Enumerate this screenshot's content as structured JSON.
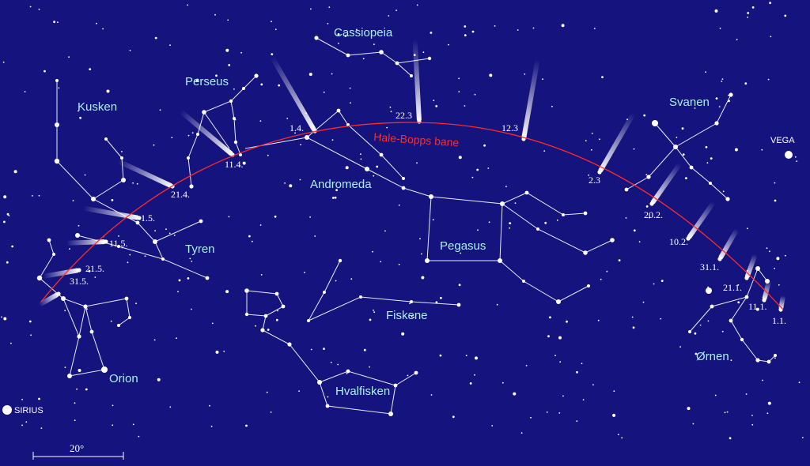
{
  "colors": {
    "background": "#15137e",
    "constellation_label": "#a8f2f2",
    "comet_path": "#ff2a2a",
    "stars": "#ffffff"
  },
  "comet_path_label": "Hale-Bopps bane",
  "constellations": {
    "cassiopeia": "Cassiopeia",
    "perseus": "Perseus",
    "kusken": "Kusken",
    "svanen": "Svanen",
    "andromeda": "Andromeda",
    "tyren": "Tyren",
    "pegasus": "Pegasus",
    "fiskene": "Fiskene",
    "orion": "Orion",
    "hvalfisken": "Hvalfisken",
    "ornen": "Ørnen"
  },
  "named_stars": {
    "vega": "VEGA",
    "sirius": "SIRIUS"
  },
  "dates": [
    "1.1.",
    "11.1.",
    "21.1.",
    "31.1.",
    "10.2.",
    "20.2.",
    "2.3",
    "12.3",
    "22.3",
    "1.4.",
    "11.4.",
    "21.4.",
    "1.5.",
    "11.5.",
    "21.5.",
    "31.5."
  ],
  "scale_bar": {
    "label": "20°"
  }
}
